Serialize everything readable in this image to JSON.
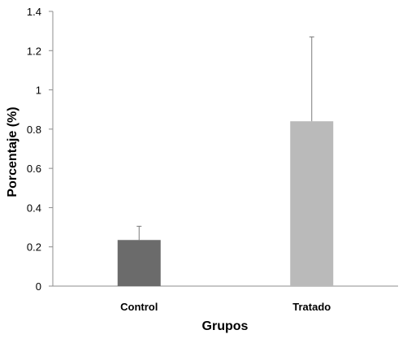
{
  "chart_data": {
    "type": "bar",
    "categories": [
      "Control",
      "Tratado"
    ],
    "values": [
      0.235,
      0.84
    ],
    "error_upper": [
      0.305,
      1.27
    ],
    "colors": [
      "#6b6b6b",
      "#bababa"
    ],
    "xlabel": "Grupos",
    "ylabel": "Porcentaje (%)",
    "ylim": [
      0,
      1.4
    ],
    "yticks": [
      {
        "value": 0,
        "label": "0"
      },
      {
        "value": 0.2,
        "label": "0.2"
      },
      {
        "value": 0.4,
        "label": "0.4"
      },
      {
        "value": 0.6,
        "label": "0.6"
      },
      {
        "value": 0.8,
        "label": "0.8"
      },
      {
        "value": 1.0,
        "label": "1"
      },
      {
        "value": 1.2,
        "label": "1.2"
      },
      {
        "value": 1.4,
        "label": "1.4"
      }
    ],
    "grid": false,
    "legend": "none"
  }
}
